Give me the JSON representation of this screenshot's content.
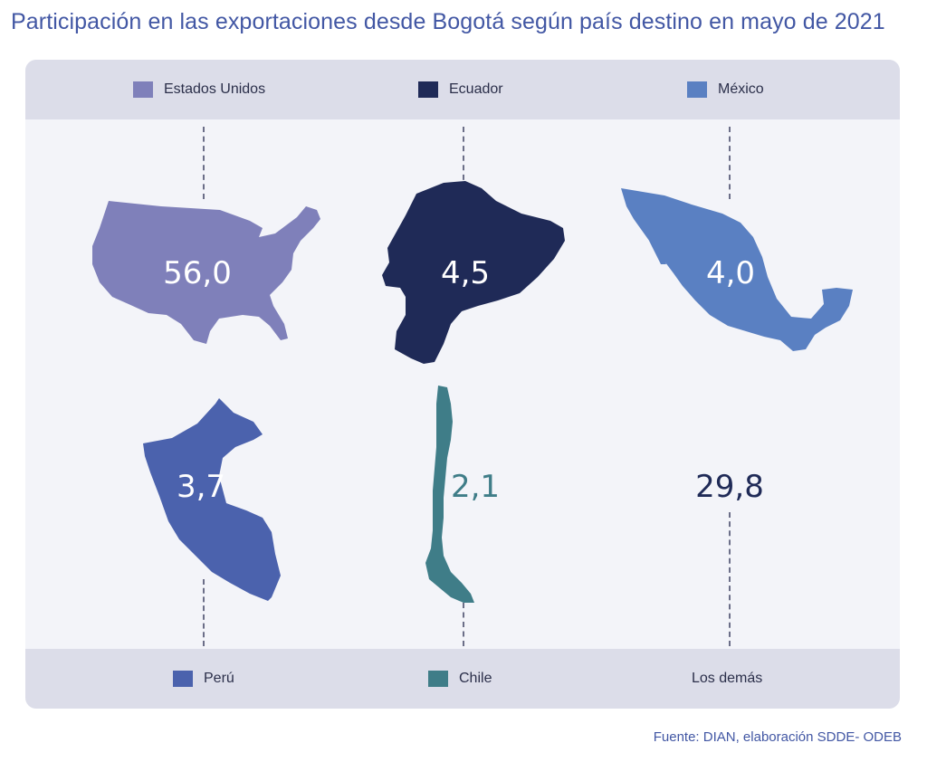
{
  "title": "Participación en las exportaciones desde Bogotá según país destino en mayo de 2021",
  "source": "Fuente: DIAN, elaboración SDDE- ODEB",
  "chart_data": {
    "type": "pictorial-map",
    "unit": "%",
    "title": "Participación en las exportaciones desde Bogotá según país destino en mayo de 2021",
    "categories": [
      "Estados Unidos",
      "Ecuador",
      "México",
      "Perú",
      "Chile",
      "Los demás"
    ],
    "values": [
      56.0,
      4.5,
      4.0,
      3.7,
      2.1,
      29.8
    ],
    "value_labels": [
      "56,0",
      "4,5",
      "4,0",
      "3,7",
      "2,1",
      "29,8"
    ],
    "colors": [
      "#7f80ba",
      "#1f2a57",
      "#5a80c2",
      "#4b62ad",
      "#3f7d88",
      "#1f2a57"
    ],
    "legend_top": [
      "Estados Unidos",
      "Ecuador",
      "México"
    ],
    "legend_bottom": [
      "Perú",
      "Chile",
      "Los demás"
    ]
  }
}
